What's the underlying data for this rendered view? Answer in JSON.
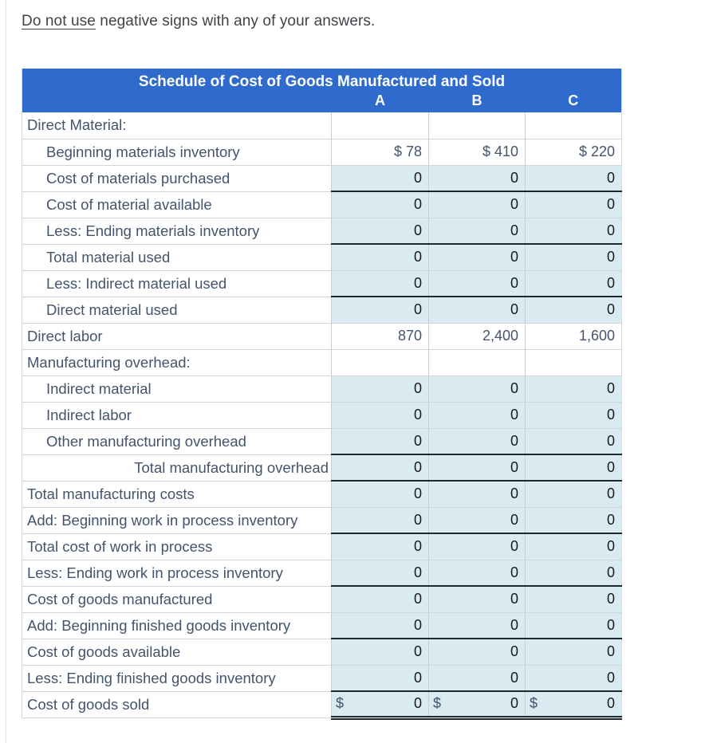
{
  "instruction": {
    "underlined_part": "Do not use",
    "rest": " negative signs with any of your answers."
  },
  "table": {
    "title": "Schedule of Cost of Goods Manufactured and Sold",
    "columns": [
      "A",
      "B",
      "C"
    ],
    "currency_symbol": "$",
    "colors": {
      "header_bg": "#2e6bcd",
      "header_text": "#ffffff",
      "answer_cell_bg": "#d9eaf1",
      "label_text": "#44546d",
      "given_value_text": "#44546d",
      "answer_value_text": "#1a1a1a",
      "accounting_rule": "#1c2733",
      "grid_line": "#c9ced3"
    },
    "rows": [
      {
        "label": "Direct Material:",
        "indent": 0,
        "values": [
          "",
          "",
          ""
        ],
        "input": false
      },
      {
        "label": "Beginning materials inventory",
        "indent": 1,
        "values": [
          "$ 78",
          "$ 410",
          "$ 220"
        ],
        "input": false
      },
      {
        "label": "Cost of materials purchased",
        "indent": 1,
        "values": [
          "0",
          "0",
          "0"
        ],
        "input": true
      },
      {
        "label": "Cost of material available",
        "indent": 1,
        "values": [
          "0",
          "0",
          "0"
        ],
        "input": true,
        "top_rule": true
      },
      {
        "label": "Less: Ending materials inventory",
        "indent": 1,
        "values": [
          "0",
          "0",
          "0"
        ],
        "input": true
      },
      {
        "label": "Total material used",
        "indent": 1,
        "values": [
          "0",
          "0",
          "0"
        ],
        "input": true,
        "top_rule": true
      },
      {
        "label": "Less: Indirect material used",
        "indent": 1,
        "values": [
          "0",
          "0",
          "0"
        ],
        "input": true
      },
      {
        "label": "Direct material used",
        "indent": 1,
        "values": [
          "0",
          "0",
          "0"
        ],
        "input": true,
        "top_rule": true
      },
      {
        "label": "Direct labor",
        "indent": 0,
        "values": [
          "870",
          "2,400",
          "1,600"
        ],
        "input": false
      },
      {
        "label": "Manufacturing overhead:",
        "indent": 0,
        "values": [
          "",
          "",
          ""
        ],
        "input": false
      },
      {
        "label": "Indirect material",
        "indent": 1,
        "values": [
          "0",
          "0",
          "0"
        ],
        "input": true
      },
      {
        "label": "Indirect labor",
        "indent": 1,
        "values": [
          "0",
          "0",
          "0"
        ],
        "input": true
      },
      {
        "label": "Other manufacturing overhead",
        "indent": 1,
        "values": [
          "0",
          "0",
          "0"
        ],
        "input": true
      },
      {
        "label": "Total manufacturing overhead",
        "indent": "right",
        "values": [
          "0",
          "0",
          "0"
        ],
        "input": true,
        "top_rule": true
      },
      {
        "label": "Total manufacturing costs",
        "indent": 0,
        "values": [
          "0",
          "0",
          "0"
        ],
        "input": true,
        "top_rule": true
      },
      {
        "label": "Add: Beginning work in process inventory",
        "indent": 0,
        "values": [
          "0",
          "0",
          "0"
        ],
        "input": true
      },
      {
        "label": "Total cost of work in process",
        "indent": 0,
        "values": [
          "0",
          "0",
          "0"
        ],
        "input": true,
        "top_rule": true
      },
      {
        "label": "Less: Ending work in process inventory",
        "indent": 0,
        "values": [
          "0",
          "0",
          "0"
        ],
        "input": true
      },
      {
        "label": "Cost of goods manufactured",
        "indent": 0,
        "values": [
          "0",
          "0",
          "0"
        ],
        "input": true,
        "top_rule": true
      },
      {
        "label": "Add: Beginning finished goods inventory",
        "indent": 0,
        "values": [
          "0",
          "0",
          "0"
        ],
        "input": true
      },
      {
        "label": "Cost of goods available",
        "indent": 0,
        "values": [
          "0",
          "0",
          "0"
        ],
        "input": true,
        "top_rule": true
      },
      {
        "label": "Less: Ending finished goods inventory",
        "indent": 0,
        "values": [
          "0",
          "0",
          "0"
        ],
        "input": true
      },
      {
        "label": "Cost of goods sold",
        "indent": 0,
        "values": [
          "0",
          "0",
          "0"
        ],
        "input": true,
        "top_rule": true,
        "dollar_prefix": true,
        "double_bottom": true
      }
    ]
  }
}
